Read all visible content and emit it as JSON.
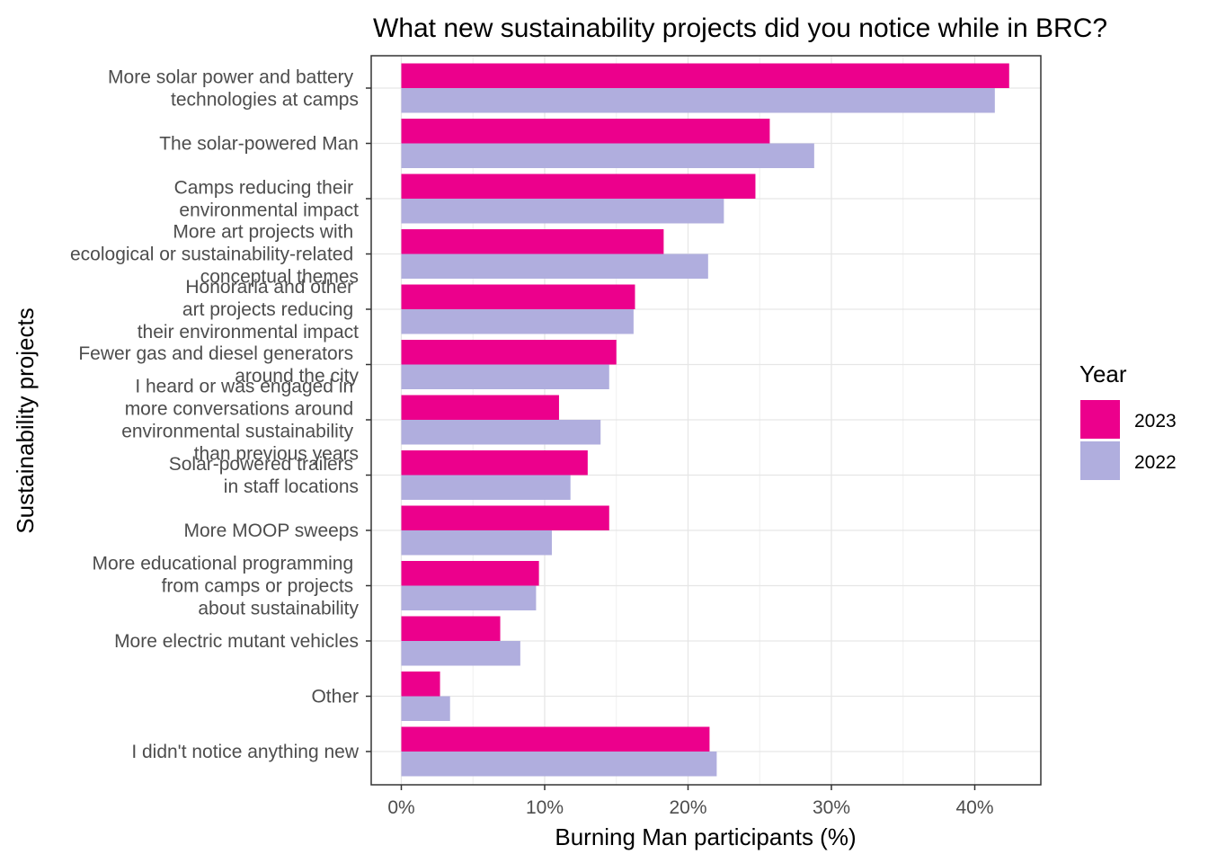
{
  "chart_data": {
    "type": "bar",
    "orientation": "horizontal",
    "title": "What new sustainability projects did you notice while in BRC?",
    "xlabel": "Burning Man participants (%)",
    "ylabel": "Sustainability projects",
    "xlim": [
      -2,
      44
    ],
    "xticks": [
      0,
      10,
      20,
      30,
      40
    ],
    "xtick_labels": [
      "0%",
      "10%",
      "20%",
      "30%",
      "40%"
    ],
    "grid": true,
    "legend": {
      "title": "Year",
      "position": "right"
    },
    "categories": [
      [
        "More solar power and battery ",
        "technologies at camps"
      ],
      [
        "The solar-powered Man"
      ],
      [
        "Camps reducing their ",
        "environmental impact"
      ],
      [
        "More art projects with ",
        "ecological or sustainability-related ",
        "conceptual themes"
      ],
      [
        "Honoraria and other ",
        "art projects reducing ",
        "their environmental impact"
      ],
      [
        "Fewer gas and diesel generators ",
        "around the city"
      ],
      [
        "I heard or was engaged in ",
        "more conversations around ",
        "environmental sustainability ",
        "than previous years"
      ],
      [
        "Solar-powered trailers ",
        "in staff locations"
      ],
      [
        "More MOOP sweeps"
      ],
      [
        "More educational programming ",
        "from camps or projects ",
        "about sustainability"
      ],
      [
        "More electric mutant vehicles"
      ],
      [
        "Other"
      ],
      [
        "I didn't notice anything new"
      ]
    ],
    "series": [
      {
        "name": "2023",
        "color": "#EC008C",
        "values": [
          42.4,
          25.7,
          24.7,
          18.3,
          16.3,
          15.0,
          11.0,
          13.0,
          14.5,
          9.6,
          6.9,
          2.7,
          21.5
        ]
      },
      {
        "name": "2022",
        "color": "#B0AEDE",
        "values": [
          41.4,
          28.8,
          22.5,
          21.4,
          16.2,
          14.5,
          13.9,
          11.8,
          10.5,
          9.4,
          8.3,
          3.4,
          22.0
        ]
      }
    ]
  }
}
